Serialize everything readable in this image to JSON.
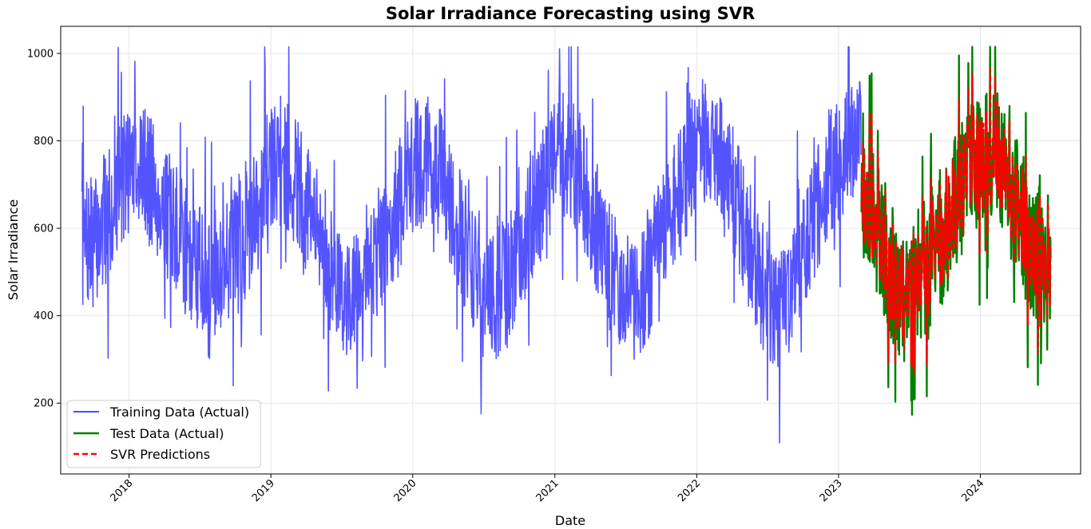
{
  "chart_data": {
    "type": "line",
    "title": "Solar Irradiance Forecasting using SVR",
    "xlabel": "Date",
    "ylabel": "Solar Irradiance",
    "x_ticks": [
      "2018",
      "2019",
      "2020",
      "2021",
      "2022",
      "2023",
      "2024"
    ],
    "y_ticks": [
      200,
      400,
      600,
      800,
      1000
    ],
    "xlim": [
      "2017-07-09",
      "2024-09-15"
    ],
    "ylim": [
      38,
      1062
    ],
    "grid": true,
    "legend_position": "bottom-left",
    "series": [
      {
        "name": "Training Data (Actual)",
        "color": "#4b4bff",
        "style": "solid",
        "x_range": [
          "2017-09-01",
          "2023-02-28"
        ],
        "monthly_mean": [
          [
            "2017-09",
            560
          ],
          [
            "2017-10",
            580
          ],
          [
            "2017-11",
            640
          ],
          [
            "2017-12",
            720
          ],
          [
            "2018-01",
            760
          ],
          [
            "2018-02",
            730
          ],
          [
            "2018-03",
            680
          ],
          [
            "2018-04",
            620
          ],
          [
            "2018-05",
            570
          ],
          [
            "2018-06",
            520
          ],
          [
            "2018-07",
            500
          ],
          [
            "2018-08",
            500
          ],
          [
            "2018-09",
            540
          ],
          [
            "2018-10",
            560
          ],
          [
            "2018-11",
            620
          ],
          [
            "2018-12",
            700
          ],
          [
            "2019-01",
            760
          ],
          [
            "2019-02",
            740
          ],
          [
            "2019-03",
            690
          ],
          [
            "2019-04",
            620
          ],
          [
            "2019-05",
            560
          ],
          [
            "2019-06",
            470
          ],
          [
            "2019-07",
            450
          ],
          [
            "2019-08",
            480
          ],
          [
            "2019-09",
            520
          ],
          [
            "2019-10",
            560
          ],
          [
            "2019-11",
            620
          ],
          [
            "2019-12",
            700
          ],
          [
            "2020-01",
            760
          ],
          [
            "2020-02",
            760
          ],
          [
            "2020-03",
            720
          ],
          [
            "2020-04",
            640
          ],
          [
            "2020-05",
            560
          ],
          [
            "2020-06",
            480
          ],
          [
            "2020-07",
            430
          ],
          [
            "2020-08",
            460
          ],
          [
            "2020-09",
            520
          ],
          [
            "2020-10",
            580
          ],
          [
            "2020-11",
            650
          ],
          [
            "2020-12",
            720
          ],
          [
            "2021-01",
            780
          ],
          [
            "2021-02",
            760
          ],
          [
            "2021-03",
            700
          ],
          [
            "2021-04",
            600
          ],
          [
            "2021-05",
            520
          ],
          [
            "2021-06",
            460
          ],
          [
            "2021-07",
            440
          ],
          [
            "2021-08",
            470
          ],
          [
            "2021-09",
            530
          ],
          [
            "2021-10",
            600
          ],
          [
            "2021-11",
            670
          ],
          [
            "2021-12",
            740
          ],
          [
            "2022-01",
            790
          ],
          [
            "2022-02",
            800
          ],
          [
            "2022-03",
            740
          ],
          [
            "2022-04",
            650
          ],
          [
            "2022-05",
            560
          ],
          [
            "2022-06",
            480
          ],
          [
            "2022-07",
            420
          ],
          [
            "2022-08",
            430
          ],
          [
            "2022-09",
            500
          ],
          [
            "2022-10",
            580
          ],
          [
            "2022-11",
            670
          ],
          [
            "2022-12",
            740
          ],
          [
            "2023-01",
            770
          ],
          [
            "2023-02",
            790
          ]
        ]
      },
      {
        "name": "Test Data (Actual)",
        "color": "#008000",
        "style": "solid",
        "x_range": [
          "2023-03-01",
          "2024-06-30"
        ],
        "monthly_mean": [
          [
            "2023-03",
            680
          ],
          [
            "2023-04",
            600
          ],
          [
            "2023-05",
            500
          ],
          [
            "2023-06",
            440
          ],
          [
            "2023-07",
            470
          ],
          [
            "2023-08",
            520
          ],
          [
            "2023-09",
            570
          ],
          [
            "2023-10",
            620
          ],
          [
            "2023-11",
            700
          ],
          [
            "2023-12",
            750
          ],
          [
            "2024-01",
            760
          ],
          [
            "2024-02",
            760
          ],
          [
            "2024-03",
            700
          ],
          [
            "2024-04",
            620
          ],
          [
            "2024-05",
            560
          ],
          [
            "2024-06",
            520
          ]
        ]
      },
      {
        "name": "SVR Predictions",
        "color": "#ff0000",
        "style": "dashed",
        "x_range": [
          "2023-03-01",
          "2024-06-30"
        ],
        "monthly_mean": [
          [
            "2023-03",
            670
          ],
          [
            "2023-04",
            600
          ],
          [
            "2023-05",
            510
          ],
          [
            "2023-06",
            460
          ],
          [
            "2023-07",
            480
          ],
          [
            "2023-08",
            530
          ],
          [
            "2023-09",
            580
          ],
          [
            "2023-10",
            630
          ],
          [
            "2023-11",
            700
          ],
          [
            "2023-12",
            760
          ],
          [
            "2024-01",
            780
          ],
          [
            "2024-02",
            770
          ],
          [
            "2024-03",
            710
          ],
          [
            "2024-04",
            620
          ],
          [
            "2024-05",
            570
          ],
          [
            "2024-06",
            520
          ]
        ]
      }
    ]
  }
}
